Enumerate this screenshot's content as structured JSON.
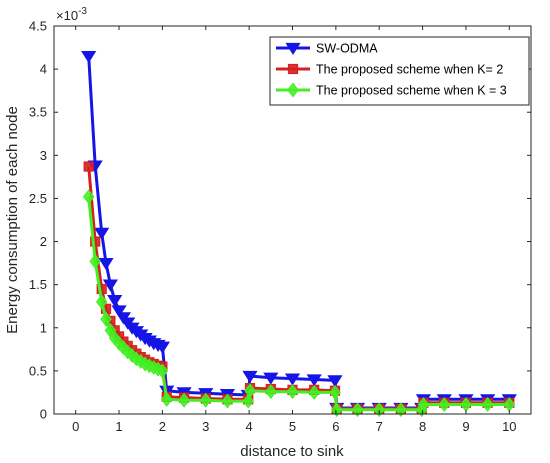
{
  "chart_data": {
    "type": "line",
    "xlabel": "distance to sink",
    "ylabel": "Energy consumption of each node",
    "y_exponent_label": "×10",
    "y_exponent_power": "-3",
    "xlim": [
      -0.5,
      10.5
    ],
    "ylim": [
      0,
      4.5
    ],
    "xticks": [
      0,
      1,
      2,
      3,
      4,
      5,
      6,
      7,
      8,
      9,
      10
    ],
    "yticks": [
      0,
      0.5,
      1,
      1.5,
      2,
      2.5,
      3,
      3.5,
      4,
      4.5
    ],
    "xtick_labels": [
      "0",
      "1",
      "2",
      "3",
      "4",
      "5",
      "6",
      "7",
      "8",
      "9",
      "10"
    ],
    "ytick_labels": [
      "0",
      "0.5",
      "1",
      "1.5",
      "2",
      "2.5",
      "3",
      "3.5",
      "4",
      "4.5"
    ],
    "legend_position": "top-right",
    "grid": false,
    "series": [
      {
        "name": "SW-ODMA",
        "color": "#1515e6",
        "marker": "triangle-down",
        "x": [
          0.3,
          0.45,
          0.6,
          0.7,
          0.8,
          0.9,
          1.0,
          1.1,
          1.2,
          1.3,
          1.4,
          1.5,
          1.6,
          1.7,
          1.8,
          1.9,
          2.0,
          2.1,
          2.5,
          3.0,
          3.5,
          3.98,
          4.02,
          4.5,
          5.0,
          5.5,
          5.98,
          6.02,
          6.5,
          7.0,
          7.5,
          7.98,
          8.02,
          8.5,
          9.0,
          9.5,
          10.0
        ],
        "values": [
          4.15,
          2.88,
          2.1,
          1.75,
          1.5,
          1.32,
          1.2,
          1.12,
          1.06,
          1.0,
          0.96,
          0.92,
          0.88,
          0.85,
          0.82,
          0.8,
          0.78,
          0.27,
          0.25,
          0.24,
          0.23,
          0.22,
          0.44,
          0.42,
          0.41,
          0.4,
          0.39,
          0.07,
          0.07,
          0.07,
          0.07,
          0.07,
          0.17,
          0.17,
          0.17,
          0.17,
          0.17
        ]
      },
      {
        "name": "The proposed scheme when K= 2",
        "color": "#d42020",
        "marker": "square",
        "x": [
          0.3,
          0.45,
          0.6,
          0.7,
          0.8,
          0.9,
          1.0,
          1.1,
          1.2,
          1.3,
          1.4,
          1.5,
          1.6,
          1.7,
          1.8,
          1.9,
          2.0,
          2.1,
          2.5,
          3.0,
          3.5,
          3.98,
          4.02,
          4.5,
          5.0,
          5.5,
          5.98,
          6.02,
          6.5,
          7.0,
          7.5,
          7.98,
          8.02,
          8.5,
          9.0,
          9.5,
          10.0
        ],
        "values": [
          2.87,
          2.0,
          1.45,
          1.22,
          1.08,
          0.97,
          0.9,
          0.84,
          0.79,
          0.74,
          0.7,
          0.66,
          0.63,
          0.6,
          0.58,
          0.56,
          0.55,
          0.2,
          0.19,
          0.18,
          0.17,
          0.17,
          0.3,
          0.29,
          0.28,
          0.28,
          0.27,
          0.06,
          0.06,
          0.06,
          0.06,
          0.06,
          0.13,
          0.13,
          0.13,
          0.13,
          0.13
        ]
      },
      {
        "name": "The proposed scheme when K = 3",
        "color": "#44ee22",
        "marker": "diamond",
        "x": [
          0.3,
          0.45,
          0.6,
          0.7,
          0.8,
          0.9,
          1.0,
          1.1,
          1.2,
          1.3,
          1.4,
          1.5,
          1.6,
          1.7,
          1.8,
          1.9,
          2.0,
          2.1,
          2.5,
          3.0,
          3.5,
          3.98,
          4.02,
          4.5,
          5.0,
          5.5,
          5.98,
          6.02,
          6.5,
          7.0,
          7.5,
          7.98,
          8.02,
          8.5,
          9.0,
          9.5,
          10.0
        ],
        "values": [
          2.52,
          1.77,
          1.3,
          1.1,
          0.97,
          0.88,
          0.82,
          0.77,
          0.72,
          0.68,
          0.64,
          0.61,
          0.58,
          0.56,
          0.54,
          0.52,
          0.5,
          0.17,
          0.16,
          0.16,
          0.15,
          0.15,
          0.27,
          0.26,
          0.26,
          0.25,
          0.25,
          0.05,
          0.05,
          0.05,
          0.05,
          0.05,
          0.11,
          0.11,
          0.11,
          0.11,
          0.11
        ]
      }
    ]
  }
}
